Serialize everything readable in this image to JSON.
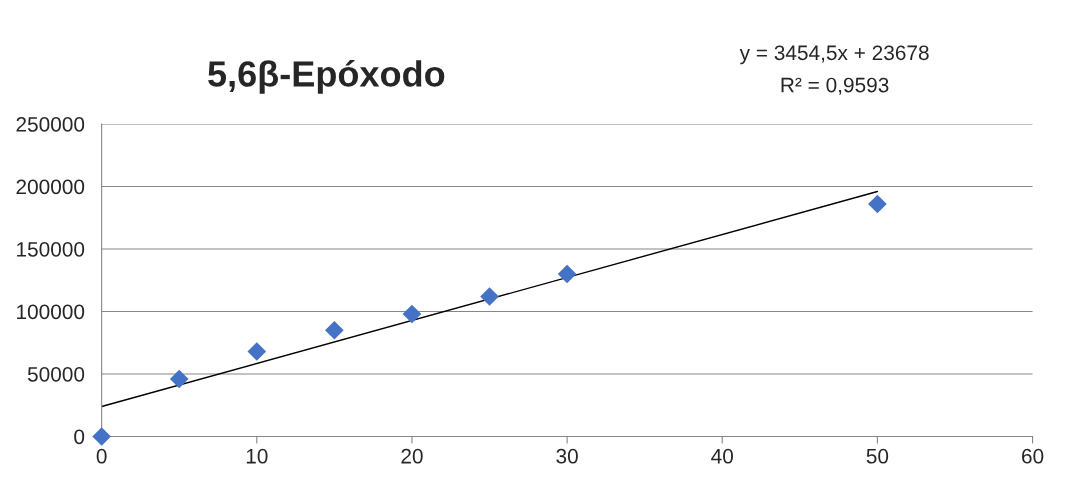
{
  "chart_data": {
    "type": "scatter",
    "title": "5,6β-Epóxodo",
    "annotations": [
      "y = 3454,5x + 23678",
      "R² = 0,9593"
    ],
    "x": [
      0,
      5,
      10,
      15,
      20,
      25,
      30,
      50
    ],
    "series": [
      {
        "color": "#4472c4",
        "marker": "diamond",
        "values": [
          0,
          46000,
          68000,
          85000,
          98000,
          112000,
          130000,
          186000
        ]
      },
      {
        "type": "line",
        "color": "#000000",
        "marker": "none",
        "x": [
          0,
          50
        ],
        "values": [
          24000,
          196000
        ]
      }
    ],
    "xlim": [
      0,
      60
    ],
    "xticks": [
      0,
      10,
      20,
      30,
      40,
      50,
      60
    ],
    "ylim": [
      0,
      250000
    ],
    "yticks": [
      0,
      50000,
      100000,
      150000,
      200000,
      250000
    ],
    "grid": "y",
    "legend": false
  }
}
